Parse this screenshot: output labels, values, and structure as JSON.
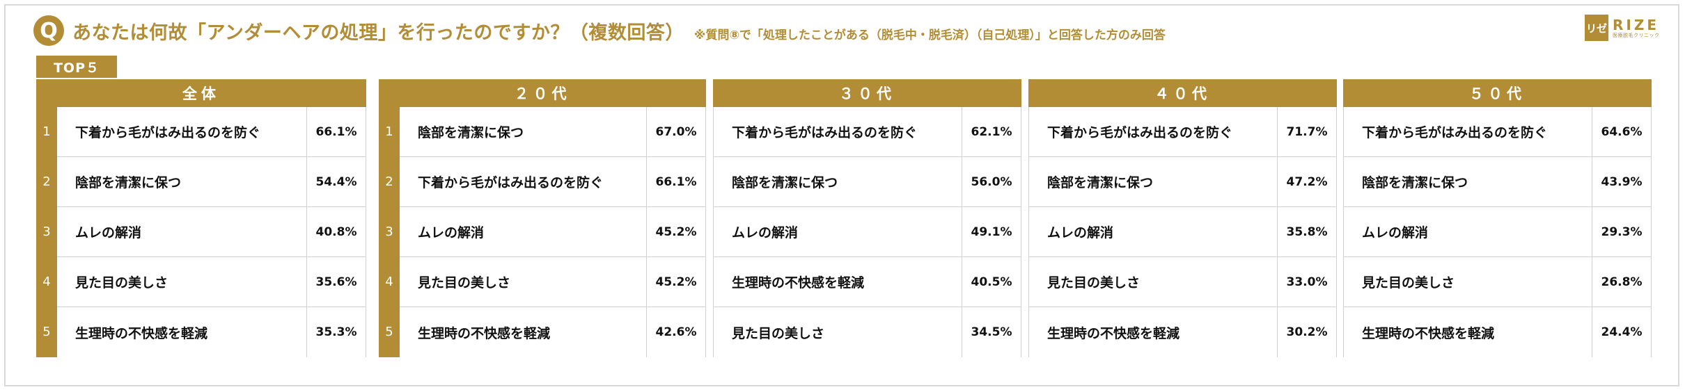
{
  "header": {
    "badge": "Q",
    "title": "あなたは何故「アンダーヘアの処理」を行ったのですか？（複数回答）",
    "note": "※質問⑧で「処理したことがある（脱毛中・脱毛済）（自己処理）」と回答した方のみ回答"
  },
  "logo": {
    "mark": "リゼ",
    "word": "RIZE",
    "sub": "医療脱毛クリニック"
  },
  "top_label": "TOP５",
  "colors": {
    "accent": "#b28d35",
    "border": "#d0d0d0"
  },
  "groups": [
    {
      "title": "全体",
      "rows": [
        {
          "rank": "1",
          "label": "下着から毛がはみ出るのを防ぐ",
          "pct": "66.1%"
        },
        {
          "rank": "2",
          "label": "陰部を清潔に保つ",
          "pct": "54.4%"
        },
        {
          "rank": "3",
          "label": "ムレの解消",
          "pct": "40.8%"
        },
        {
          "rank": "4",
          "label": "見た目の美しさ",
          "pct": "35.6%"
        },
        {
          "rank": "5",
          "label": "生理時の不快感を軽減",
          "pct": "35.3%"
        }
      ]
    },
    {
      "title": "２０代",
      "rows": [
        {
          "rank": "1",
          "label": "陰部を清潔に保つ",
          "pct": "67.0%"
        },
        {
          "rank": "2",
          "label": "下着から毛がはみ出るのを防ぐ",
          "pct": "66.1%"
        },
        {
          "rank": "3",
          "label": "ムレの解消",
          "pct": "45.2%"
        },
        {
          "rank": "4",
          "label": "見た目の美しさ",
          "pct": "45.2%"
        },
        {
          "rank": "5",
          "label": "生理時の不快感を軽減",
          "pct": "42.6%"
        }
      ]
    },
    {
      "title": "３０代",
      "rows": [
        {
          "rank": "",
          "label": "下着から毛がはみ出るのを防ぐ",
          "pct": "62.1%"
        },
        {
          "rank": "",
          "label": "陰部を清潔に保つ",
          "pct": "56.0%"
        },
        {
          "rank": "",
          "label": "ムレの解消",
          "pct": "49.1%"
        },
        {
          "rank": "",
          "label": "生理時の不快感を軽減",
          "pct": "40.5%"
        },
        {
          "rank": "",
          "label": "見た目の美しさ",
          "pct": "34.5%"
        }
      ]
    },
    {
      "title": "４０代",
      "rows": [
        {
          "rank": "",
          "label": "下着から毛がはみ出るのを防ぐ",
          "pct": "71.7%"
        },
        {
          "rank": "",
          "label": "陰部を清潔に保つ",
          "pct": "47.2%"
        },
        {
          "rank": "",
          "label": "ムレの解消",
          "pct": "35.8%"
        },
        {
          "rank": "",
          "label": "見た目の美しさ",
          "pct": "33.0%"
        },
        {
          "rank": "",
          "label": "生理時の不快感を軽減",
          "pct": "30.2%"
        }
      ]
    },
    {
      "title": "５０代",
      "rows": [
        {
          "rank": "",
          "label": "下着から毛がはみ出るのを防ぐ",
          "pct": "64.6%"
        },
        {
          "rank": "",
          "label": "陰部を清潔に保つ",
          "pct": "43.9%"
        },
        {
          "rank": "",
          "label": "ムレの解消",
          "pct": "29.3%"
        },
        {
          "rank": "",
          "label": "見た目の美しさ",
          "pct": "26.8%"
        },
        {
          "rank": "",
          "label": "生理時の不快感を軽減",
          "pct": "24.4%"
        }
      ]
    }
  ]
}
